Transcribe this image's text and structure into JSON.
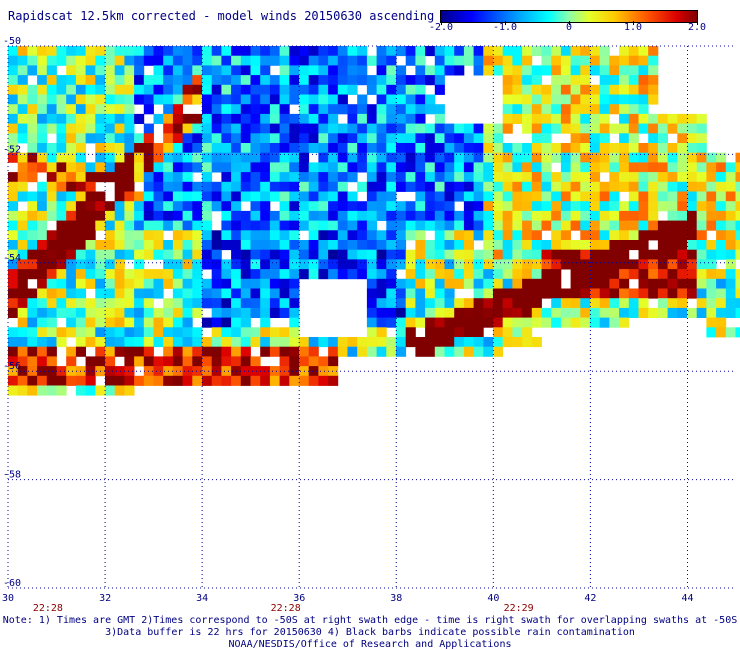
{
  "title": "Rapidscat 12.5km corrected - model winds 20150630 ascending",
  "colorbar": {
    "labels": [
      "-2.0",
      "-1.0",
      "0",
      "1.0",
      "2.0"
    ],
    "values": [
      -2.0,
      -1.0,
      0,
      1.0,
      2.0
    ]
  },
  "map": {
    "lon_ticks": [
      "30",
      "32",
      "34",
      "36",
      "38",
      "40",
      "42",
      "44"
    ],
    "lat_ticks": [
      "-50",
      "-52",
      "-54",
      "-56",
      "-58",
      "-60"
    ],
    "lon_range": [
      30,
      45
    ],
    "lat_range": [
      -60,
      -50
    ],
    "time_labels": [
      {
        "text": "22:28",
        "lon": 30.8
      },
      {
        "text": "22:28",
        "lon": 35.7
      },
      {
        "text": "22:29",
        "lon": 40.5
      }
    ]
  },
  "notes": [
    "Note: 1) Times are GMT 2)Times correspond to -50S at right swath edge - time is right swath for overlapping swaths at -50S",
    "3)Data buffer is 22 hrs for 20150630 4) Black barbs indicate possible rain contamination",
    "NOAA/NESDIS/Office of Research and Applications"
  ]
}
